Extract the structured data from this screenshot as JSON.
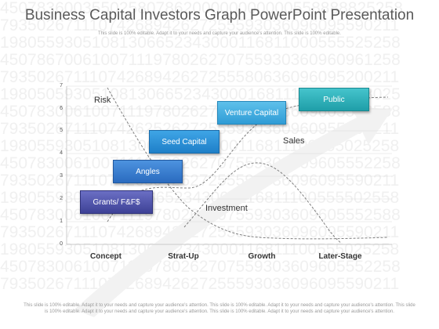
{
  "title": "Business Capital Investors Graph PowerPoint Presentation",
  "subtitle": "This slide is 100% editable. Adapt it to your needs and capture your audience's attention. This slide is 100% editable.",
  "footer": "This slide is 100% editable. Adapt it to your needs and capture your audience's attention. This slide is 100% editable. Adapt it to your needs and capture your audience's attention. This slide is 100% editable. Adapt it to your needs and capture your audience's attention. This slide is 100% editable. Adapt it to your needs and capture your audience's attention.",
  "background_numbers": [
    "45078360035502580786200000000000558888825258",
    "79350267111074268942627255593036096095590211",
    "19805593051081306652343000116811000555525258",
    "45078670061007111978026270755930360960961258",
    "79350267111074268942627255580636096095200211",
    "19805059305108130665234300016811100550258025",
    "45078300610071119780262707559303609605552588",
    "79350267111074262526272555930360960955590211",
    "19805593051081306652343000116811100555025258",
    "45078300610071119780262707559303609605552258",
    "79350267111074268942627255593036096095590211",
    "19805593051081306652343000116811100555502558",
    "45078300610071119780262707559303609605552588",
    "79350267111074268942627255593036096095590211",
    "19805593051081306652343000116811100555025258",
    "45078300610071119780262707559303609605552258",
    "79350267111074268942627255593036096095590211"
  ],
  "y_ticks": [
    "0",
    "1",
    "2",
    "3",
    "4",
    "5",
    "6",
    "7"
  ],
  "x_ticks": [
    "Concept",
    "Strat-Up",
    "Growth",
    "Later-Stage"
  ],
  "curve_labels": {
    "risk": "Risk",
    "sales": "Sales",
    "investment": "Investment"
  },
  "stages": {
    "grants": "Grants/ F&F$",
    "angles": "Angles",
    "seed": "Seed Capital",
    "venture": "Venture Capital",
    "public": "Public"
  },
  "colors": {
    "title": "#595959",
    "grants": "#3d4196",
    "angles": "#2a6bbf",
    "seed": "#1e7fc8",
    "venture": "#2f9cd6",
    "public": "#1f9ea8",
    "curve": "#7f7f7f"
  }
}
